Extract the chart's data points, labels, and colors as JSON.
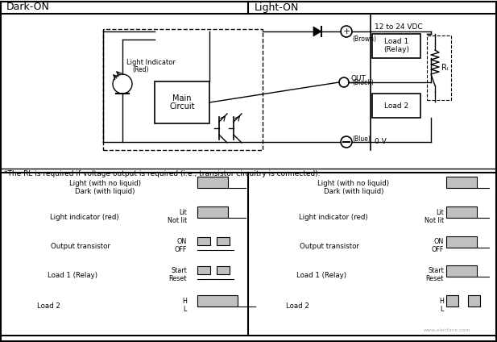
{
  "bg_color": "#ffffff",
  "gray_box_color": "#c0c0c0",
  "dark_on_label": "Dark-ON",
  "light_on_label": "Light-ON",
  "note_text": "*The RL is required if voltage output is required (i.e., transistor circuitry is connected)."
}
